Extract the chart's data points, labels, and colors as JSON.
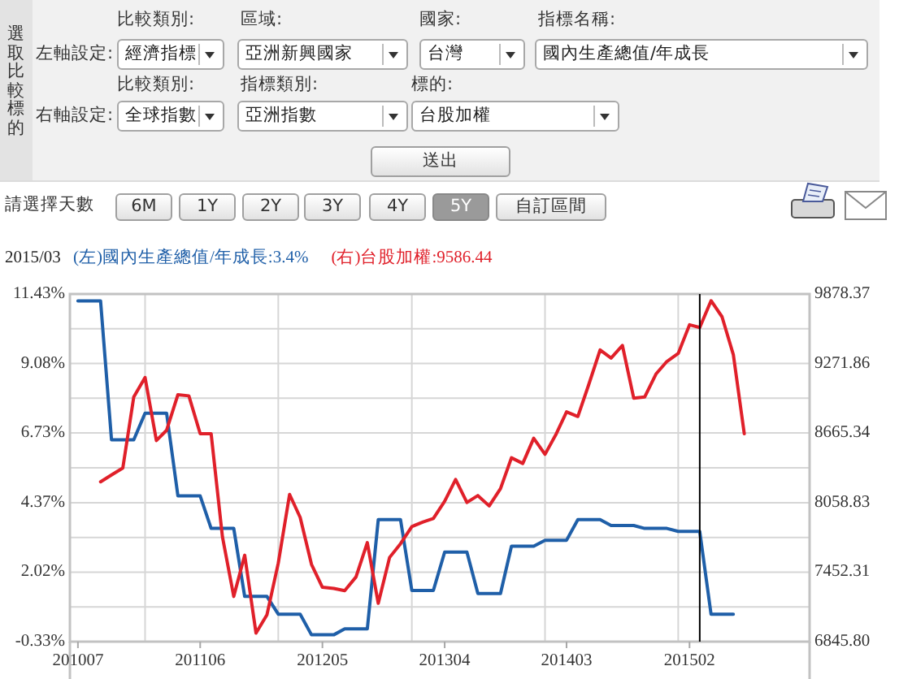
{
  "chart_data": {
    "type": "line",
    "annotations": [
      "選取比較標的",
      "左軸設定:",
      "比較類別:",
      "區域:",
      "國家:",
      "指標名稱:",
      "經濟指標",
      "亞洲新興國家",
      "台灣",
      "國內生產總值/年成長",
      "右軸設定:",
      "比較類別:",
      "指標類別:",
      "標的:",
      "全球指數",
      "亞洲指數",
      "台股加權",
      "送出",
      "請選擇天數",
      "6M",
      "1Y",
      "2Y",
      "3Y",
      "4Y",
      "5Y",
      "自訂區間",
      "2015/03"
    ],
    "series": [
      {
        "name": "(左)國內生產總值/年成長:3.4%",
        "color": "#1f5fa8",
        "x": [
          "2010-07",
          "2010-08",
          "2010-09",
          "2010-10",
          "2010-11",
          "2010-12",
          "2011-01",
          "2011-02",
          "2011-03",
          "2011-04",
          "2011-05",
          "2011-06",
          "2011-07",
          "2011-08",
          "2011-09",
          "2011-10",
          "2011-11",
          "2011-12",
          "2012-01",
          "2012-02",
          "2012-03",
          "2012-04",
          "2012-05",
          "2012-06",
          "2012-07",
          "2012-08",
          "2012-09",
          "2012-10",
          "2012-11",
          "2012-12",
          "2013-01",
          "2013-02",
          "2013-03",
          "2013-04",
          "2013-05",
          "2013-06",
          "2013-07",
          "2013-08",
          "2013-09",
          "2013-10",
          "2013-11",
          "2013-12",
          "2014-01",
          "2014-02",
          "2014-03",
          "2014-04",
          "2014-05",
          "2014-06",
          "2014-07",
          "2014-08",
          "2014-09",
          "2014-10",
          "2014-11",
          "2014-12",
          "2015-01",
          "2015-02",
          "2015-03",
          "2015-04",
          "2015-05",
          "2015-06"
        ],
        "values": [
          11.2,
          11.2,
          11.2,
          6.5,
          6.5,
          6.5,
          7.4,
          7.4,
          7.4,
          4.6,
          4.6,
          4.6,
          3.5,
          3.5,
          3.5,
          1.2,
          1.2,
          1.2,
          0.6,
          0.6,
          0.6,
          -0.1,
          -0.1,
          -0.1,
          0.1,
          0.1,
          0.1,
          3.8,
          3.8,
          3.8,
          1.4,
          1.4,
          1.4,
          2.7,
          2.7,
          2.7,
          1.3,
          1.3,
          1.3,
          2.9,
          2.9,
          2.9,
          3.1,
          3.1,
          3.1,
          3.8,
          3.8,
          3.8,
          3.6,
          3.6,
          3.6,
          3.5,
          3.5,
          3.5,
          3.4,
          3.4,
          3.4,
          0.6,
          0.6,
          0.6
        ]
      },
      {
        "name": "(右)台股加權:9586.44",
        "color": "#e0202a",
        "axis": "y2",
        "x": [
          "2010-09",
          "2010-10",
          "2010-11",
          "2010-12",
          "2011-01",
          "2011-02",
          "2011-03",
          "2011-04",
          "2011-05",
          "2011-06",
          "2011-07",
          "2011-08",
          "2011-09",
          "2011-10",
          "2011-11",
          "2011-12",
          "2012-01",
          "2012-02",
          "2012-03",
          "2012-04",
          "2012-05",
          "2012-06",
          "2012-07",
          "2012-08",
          "2012-09",
          "2012-10",
          "2012-11",
          "2012-12",
          "2013-01",
          "2013-02",
          "2013-03",
          "2013-04",
          "2013-05",
          "2013-06",
          "2013-07",
          "2013-08",
          "2013-09",
          "2013-10",
          "2013-11",
          "2013-12",
          "2014-01",
          "2014-02",
          "2014-03",
          "2014-04",
          "2014-05",
          "2014-06",
          "2014-07",
          "2014-08",
          "2014-09",
          "2014-10",
          "2014-11",
          "2014-12",
          "2015-01",
          "2015-02",
          "2015-03",
          "2015-04",
          "2015-05",
          "2015-06",
          "2015-07"
        ],
        "values": [
          8240,
          8300,
          8360,
          8980,
          9150,
          8600,
          8690,
          9000,
          8990,
          8660,
          8660,
          7760,
          7240,
          7600,
          6920,
          7080,
          7530,
          8130,
          7930,
          7520,
          7320,
          7310,
          7290,
          7410,
          7710,
          7180,
          7580,
          7700,
          7850,
          7890,
          7920,
          8070,
          8260,
          8060,
          8120,
          8030,
          8180,
          8450,
          8400,
          8620,
          8480,
          8660,
          8850,
          8810,
          9090,
          9390,
          9320,
          9430,
          8970,
          8980,
          9180,
          9290,
          9360,
          9610,
          9586.44,
          9820,
          9680,
          9350,
          8660
        ]
      }
    ],
    "xlim": [
      "2010-06-09",
      "2015-12-27"
    ],
    "xticks": [
      {
        "value": "2010-07",
        "label": "201007"
      },
      {
        "value": "2011-01",
        "label": null
      },
      {
        "value": "2011-06",
        "label": "201106"
      },
      {
        "value": "2012-01",
        "label": null
      },
      {
        "value": "2012-05",
        "label": "201205"
      },
      {
        "value": "2013-01",
        "label": null
      },
      {
        "value": "2013-04",
        "label": "201304"
      },
      {
        "value": "2014-01",
        "label": null
      },
      {
        "value": "2014-03",
        "label": "201403"
      },
      {
        "value": "2015-01",
        "label": null
      },
      {
        "value": "2015-02",
        "label": "201502"
      }
    ],
    "ylim": [
      -0.33,
      11.43
    ],
    "yticks": [
      {
        "value": 11.43,
        "label": "11.43%"
      },
      {
        "value": 10.255,
        "label": null
      },
      {
        "value": 9.08,
        "label": "9.08%"
      },
      {
        "value": 7.905,
        "label": null
      },
      {
        "value": 6.73,
        "label": "6.73%"
      },
      {
        "value": 5.55,
        "label": null
      },
      {
        "value": 4.37,
        "label": "4.37%"
      },
      {
        "value": 3.195,
        "label": null
      },
      {
        "value": 2.02,
        "label": "2.02%"
      },
      {
        "value": 0.845,
        "label": null
      },
      {
        "value": -0.33,
        "label": "-0.33%"
      }
    ],
    "y2lim": [
      6845.8,
      9878.37
    ],
    "y2ticks": [
      9878.37,
      9271.86,
      8665.34,
      8058.83,
      7452.31,
      {
        "value": 6845.8,
        "label": "6845.80"
      }
    ],
    "ref_lines": [
      {
        "axis": "x",
        "value": "2015-03",
        "color": "#000000"
      }
    ],
    "grid": true,
    "legend": "top left"
  }
}
